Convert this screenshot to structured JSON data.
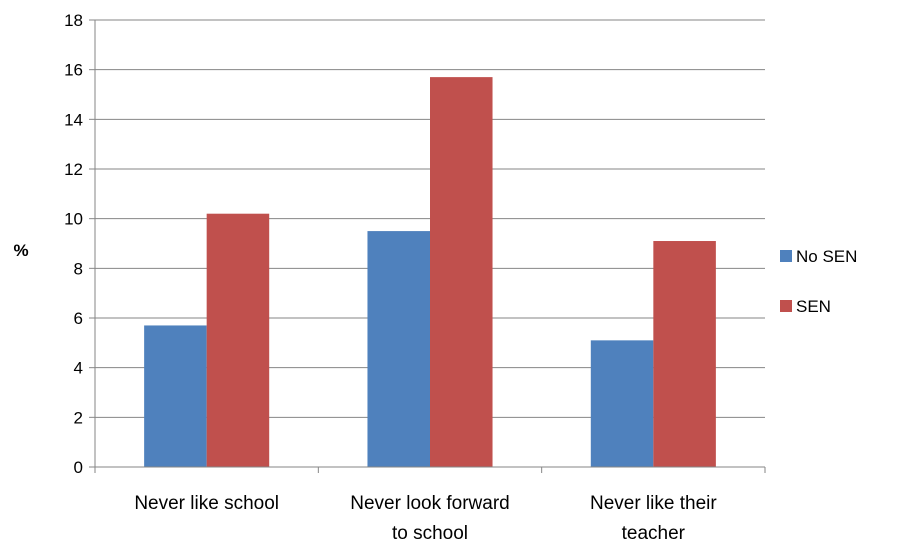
{
  "chart_data": {
    "type": "bar",
    "title": "",
    "xlabel": "",
    "ylabel": "%",
    "ylim": [
      0,
      18
    ],
    "yticks": [
      0,
      2,
      4,
      6,
      8,
      10,
      12,
      14,
      16,
      18
    ],
    "grid": true,
    "legend_position": "right",
    "categories": [
      [
        "Never like school"
      ],
      [
        "Never look forward",
        "to school"
      ],
      [
        "Never like their",
        "teacher"
      ]
    ],
    "series": [
      {
        "name": "No SEN",
        "color": "#4F81BD",
        "values": [
          5.7,
          9.5,
          5.1
        ]
      },
      {
        "name": "SEN",
        "color": "#C0504D",
        "values": [
          10.2,
          15.7,
          9.1
        ]
      }
    ]
  }
}
